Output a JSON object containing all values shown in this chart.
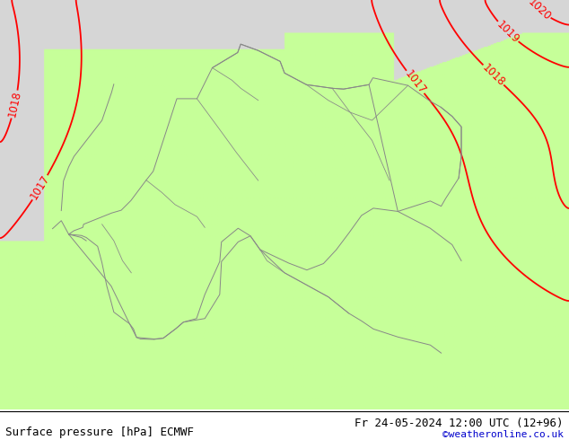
{
  "title_left": "Surface pressure [hPa] ECMWF",
  "title_right": "Fr 24-05-2024 12:00 UTC (12+96)",
  "credit": "©weatheronline.co.uk",
  "bg_green": [
    0.78,
    1.0,
    0.6
  ],
  "bg_gray": [
    0.84,
    0.84,
    0.84
  ],
  "contour_color": "#ff0000",
  "border_color": "#888888",
  "border_color_dark": "#555555",
  "text_color": "#000000",
  "credit_color": "#0000cc",
  "font_size_labels": 8.5,
  "font_size_bottom": 9,
  "contour_linewidth": 1.3,
  "border_linewidth": 0.7,
  "figsize": [
    6.34,
    4.9
  ],
  "dpi": 100,
  "lon_min": 4.5,
  "lon_max": 17.5,
  "lat_min": 45.8,
  "lat_max": 56.0,
  "pressure_levels": [
    1017,
    1018,
    1019,
    1020
  ],
  "pressure_field_params": {
    "base": 1016.5,
    "centers": [
      {
        "lon": 1.0,
        "lat": 54.5,
        "amp": 5.5,
        "slon": 12,
        "slat": 18
      },
      {
        "lon": 18.0,
        "lat": 57.0,
        "amp": 4.5,
        "slon": 12,
        "slat": 10
      },
      {
        "lon": 14.0,
        "lat": 46.5,
        "amp": -1.5,
        "slon": 8,
        "slat": 5
      },
      {
        "lon": 8.0,
        "lat": 49.5,
        "amp": -0.8,
        "slon": 5,
        "slat": 5
      },
      {
        "lon": 6.0,
        "lat": 47.0,
        "amp": -1.2,
        "slon": 4,
        "slat": 4
      },
      {
        "lon": 10.0,
        "lat": 47.5,
        "amp": -1.0,
        "slon": 4,
        "slat": 3
      },
      {
        "lon": 18.0,
        "lat": 51.0,
        "amp": 1.5,
        "slon": 6,
        "slat": 8
      }
    ]
  },
  "land_regions": [
    {
      "type": "rect",
      "lon1": 4.5,
      "lon2": 17.5,
      "lat1": 45.8,
      "lat2": 56.0,
      "green": true
    },
    {
      "type": "sea_north",
      "lon1": 4.5,
      "lon2": 9.5,
      "lat1": 53.5,
      "lat2": 56.0
    },
    {
      "type": "sea_nw",
      "lon1": 4.5,
      "lon2": 7.0,
      "lat1": 51.0,
      "lat2": 54.0
    }
  ]
}
